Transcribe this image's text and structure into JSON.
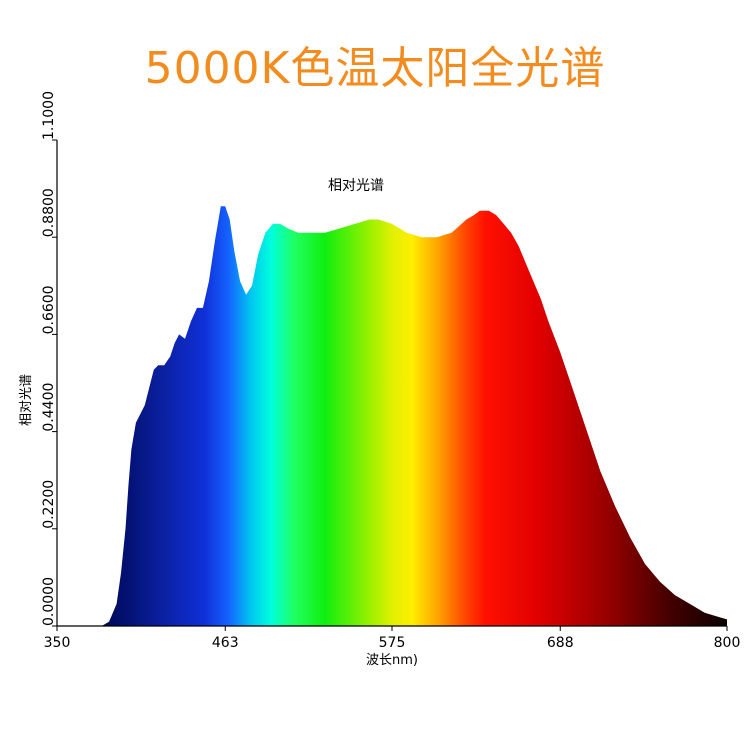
{
  "page_title": "5000K色温太阳全光谱",
  "chart_data": {
    "type": "area",
    "title": "相对光谱",
    "xlabel": "波长nm)",
    "ylabel": "相对光谱",
    "xlim": [
      350,
      800
    ],
    "ylim": [
      0,
      1.1
    ],
    "x_ticks": [
      "350",
      "463",
      "575",
      "688",
      "800"
    ],
    "x_tick_values": [
      350,
      463,
      575,
      688,
      800
    ],
    "y_ticks": [
      "0.0000",
      "0.2200",
      "0.4400",
      "0.6600",
      "0.8800",
      "1.1000"
    ],
    "y_tick_values": [
      0,
      0.22,
      0.44,
      0.66,
      0.88,
      1.1
    ],
    "grid": false,
    "fill": "spectral-gradient",
    "x": [
      380,
      385,
      390,
      393,
      396,
      398,
      400,
      403,
      406,
      409,
      412,
      415,
      418,
      422,
      426,
      429,
      432,
      436,
      440,
      444,
      448,
      452,
      456,
      460,
      463,
      466,
      469,
      473,
      477,
      481,
      485,
      490,
      495,
      500,
      505,
      512,
      520,
      530,
      540,
      550,
      560,
      566,
      575,
      585,
      595,
      605,
      615,
      625,
      630,
      634,
      640,
      645,
      650,
      655,
      660,
      665,
      670,
      675,
      680,
      688,
      695,
      705,
      715,
      725,
      735,
      745,
      755,
      765,
      775,
      785,
      795,
      800
    ],
    "values": [
      0.0,
      0.01,
      0.05,
      0.12,
      0.22,
      0.32,
      0.4,
      0.46,
      0.48,
      0.5,
      0.54,
      0.58,
      0.59,
      0.59,
      0.61,
      0.64,
      0.66,
      0.65,
      0.69,
      0.72,
      0.72,
      0.78,
      0.87,
      0.95,
      0.95,
      0.92,
      0.85,
      0.78,
      0.75,
      0.77,
      0.84,
      0.89,
      0.91,
      0.91,
      0.9,
      0.89,
      0.89,
      0.89,
      0.9,
      0.91,
      0.92,
      0.92,
      0.91,
      0.89,
      0.88,
      0.88,
      0.89,
      0.92,
      0.93,
      0.94,
      0.94,
      0.93,
      0.91,
      0.89,
      0.86,
      0.82,
      0.78,
      0.74,
      0.69,
      0.62,
      0.55,
      0.45,
      0.35,
      0.27,
      0.2,
      0.14,
      0.1,
      0.07,
      0.05,
      0.03,
      0.02,
      0.015
    ]
  }
}
